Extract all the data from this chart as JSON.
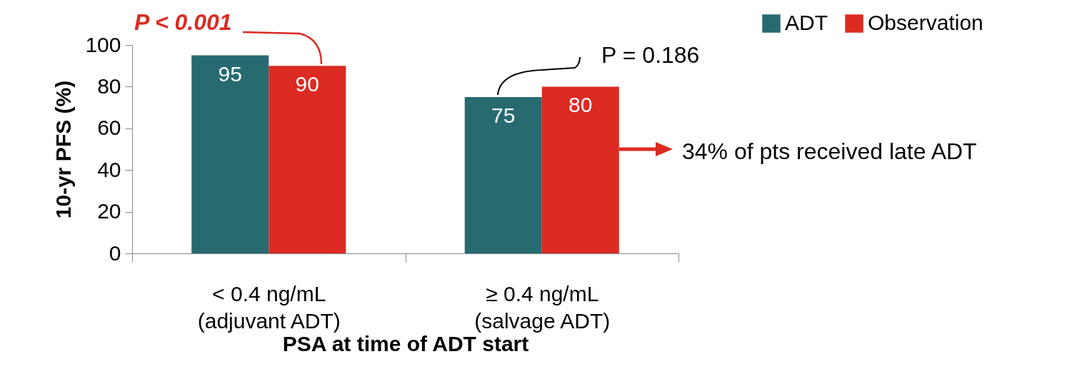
{
  "chart_data": {
    "type": "bar",
    "categories": [
      "< 0.4 ng/mL\n(adjuvant ADT)",
      "≥ 0.4 ng/mL\n(salvage ADT)"
    ],
    "series": [
      {
        "name": "ADT",
        "color": "#276a70",
        "values": [
          95,
          75
        ]
      },
      {
        "name": "Observation",
        "color": "#dc2b22",
        "values": [
          90,
          80
        ]
      }
    ],
    "xlabel": "PSA at time of ADT start",
    "ylabel": "10-yr PFS (%)",
    "ylim": [
      0,
      100
    ],
    "yticks": [
      0,
      20,
      40,
      60,
      80,
      100
    ],
    "data_labels": true,
    "legend": "top right",
    "grid": false,
    "annotations": [
      {
        "text": "P < 0.001",
        "x": "< 0.4 ng/mL\n(adjuvant ADT)",
        "y": 90
      },
      {
        "text": "P = 0.186",
        "x": "≥ 0.4 ng/mL\n(salvage ADT)",
        "y": 75
      },
      "34% of pts received late ADT"
    ]
  }
}
